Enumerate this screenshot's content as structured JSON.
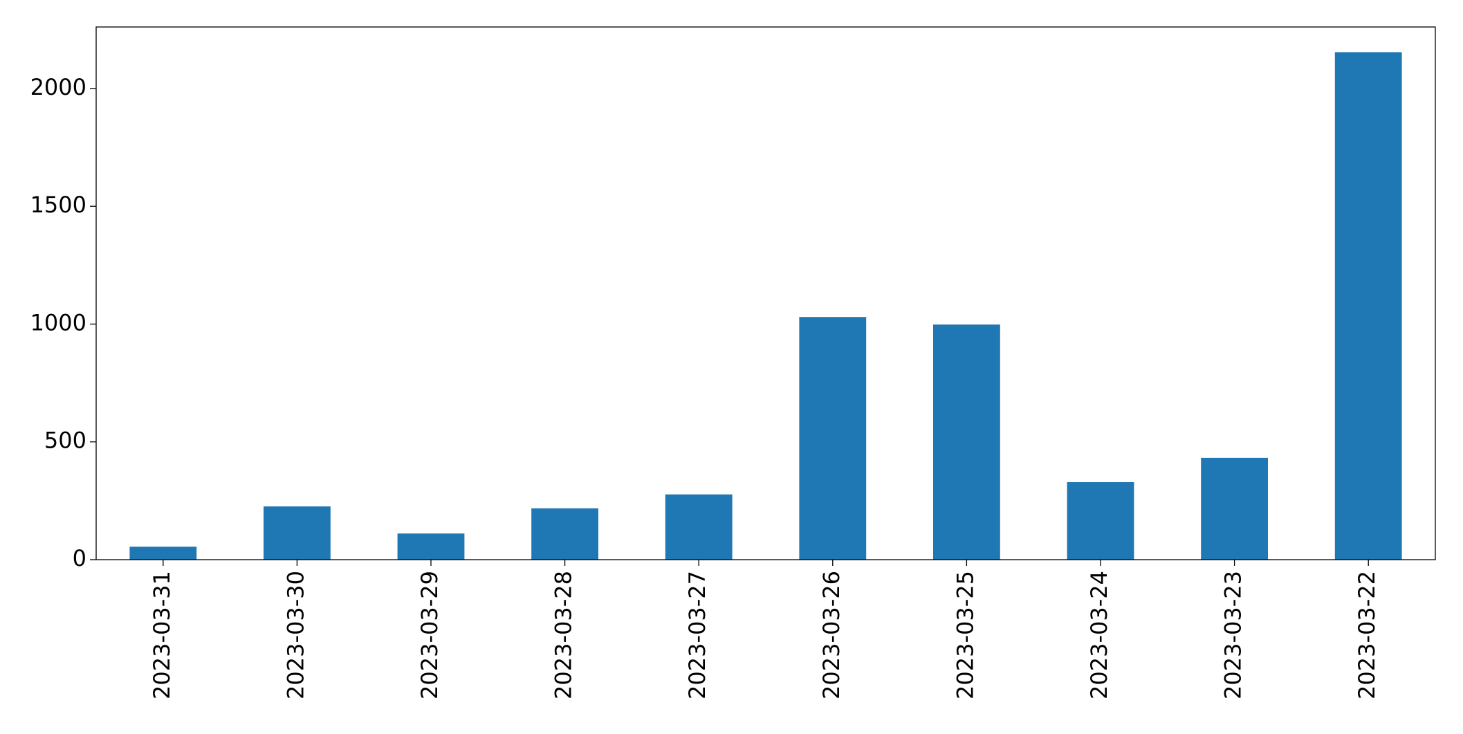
{
  "chart_data": {
    "type": "bar",
    "categories": [
      "2023-03-31",
      "2023-03-30",
      "2023-03-29",
      "2023-03-28",
      "2023-03-27",
      "2023-03-26",
      "2023-03-25",
      "2023-03-24",
      "2023-03-23",
      "2023-03-22"
    ],
    "values": [
      55,
      226,
      111,
      218,
      277,
      1030,
      998,
      329,
      432,
      2154
    ],
    "color": "#1f77b4",
    "ylim": [
      0,
      2261
    ],
    "yticks": [
      0,
      500,
      1000,
      1500,
      2000
    ],
    "grid": false
  }
}
